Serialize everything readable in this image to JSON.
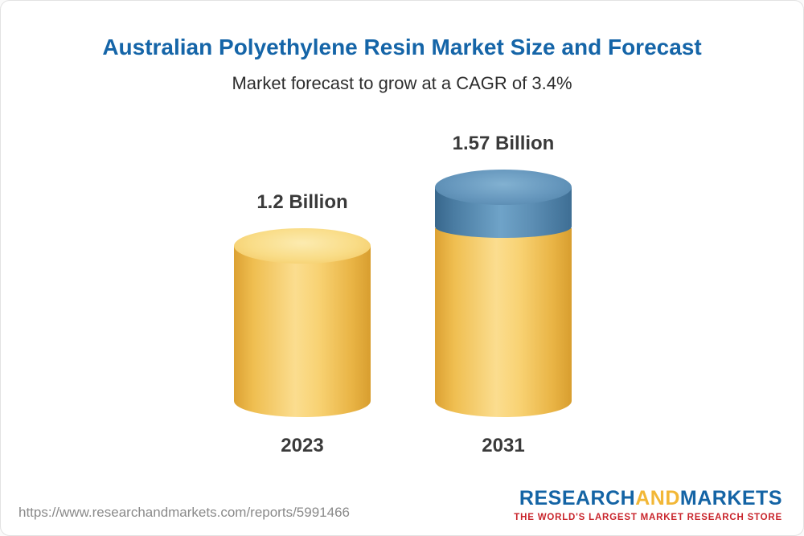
{
  "page": {
    "title": "Australian Polyethylene Resin Market Size and Forecast",
    "subtitle": "Market forecast to grow at a CAGR of 3.4%"
  },
  "chart_data": {
    "type": "bar",
    "style": "3d-cylinder",
    "title": "Australian Polyethylene Resin Market Size and Forecast",
    "subtitle": "Market forecast to grow at a CAGR of 3.4%",
    "categories": [
      "2023",
      "2031"
    ],
    "values": [
      1.2,
      1.57
    ],
    "value_labels": [
      "1.2 Billion",
      "1.57 Billion"
    ],
    "unit": "Billion",
    "baseline_value": 1.2,
    "cagr": "3.4%",
    "colors": {
      "base_bar": "#F5C55F",
      "growth_segment": "#5E90B6"
    },
    "layout": {
      "legend": "none",
      "grid": "off",
      "bar_labels_position": "above",
      "category_labels_position": "below"
    }
  },
  "footer": {
    "url": "https://www.researchandmarkets.com/reports/5991466",
    "logo": {
      "part1": "RESEARCH",
      "part2": "AND",
      "part3": "MARKETS",
      "tagline": "THE WORLD'S LARGEST MARKET RESEARCH STORE"
    }
  }
}
